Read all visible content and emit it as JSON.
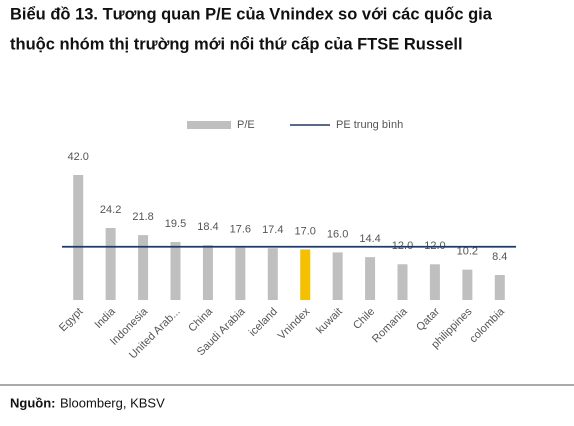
{
  "chart_data": {
    "type": "bar",
    "title": [
      "Biểu đồ 13. Tương quan P/E của Vnindex so với các quốc gia",
      "thuộc nhóm thị trường mới nổi thứ cấp của FTSE Russell"
    ],
    "categories": [
      "Egypt",
      "India",
      "Indonesia",
      "United Arab...",
      "China",
      "Saudi Arabia",
      "iceland",
      "Vnindex",
      "kuwait",
      "Chile",
      "Romania",
      "Qatar",
      "philippines",
      "colombia"
    ],
    "series": [
      {
        "name": "P/E",
        "color": "#bfbfbf",
        "colors": [
          "#bfbfbf",
          "#bfbfbf",
          "#bfbfbf",
          "#bfbfbf",
          "#bfbfbf",
          "#bfbfbf",
          "#bfbfbf",
          "#f5c000",
          "#bfbfbf",
          "#bfbfbf",
          "#bfbfbf",
          "#bfbfbf",
          "#bfbfbf",
          "#bfbfbf"
        ],
        "values": [
          42.0,
          24.2,
          21.8,
          19.5,
          18.4,
          17.6,
          17.4,
          17.0,
          16.0,
          14.4,
          12.0,
          12.0,
          10.2,
          8.4
        ],
        "value_labels": [
          "42.0",
          "24.2",
          "21.8",
          "19.5",
          "18.4",
          "17.6",
          "17.4",
          "17.0",
          "16.0",
          "14.4",
          "12.0",
          "12.0",
          "10.2",
          "8.4"
        ]
      }
    ],
    "reference_line": {
      "name": "PE trung bình",
      "value": 17.9,
      "color": "#1f3864"
    },
    "ylim": [
      0,
      42
    ],
    "legend": "top",
    "source_label": "Nguồn:",
    "source": "Bloomberg, KBSV"
  }
}
